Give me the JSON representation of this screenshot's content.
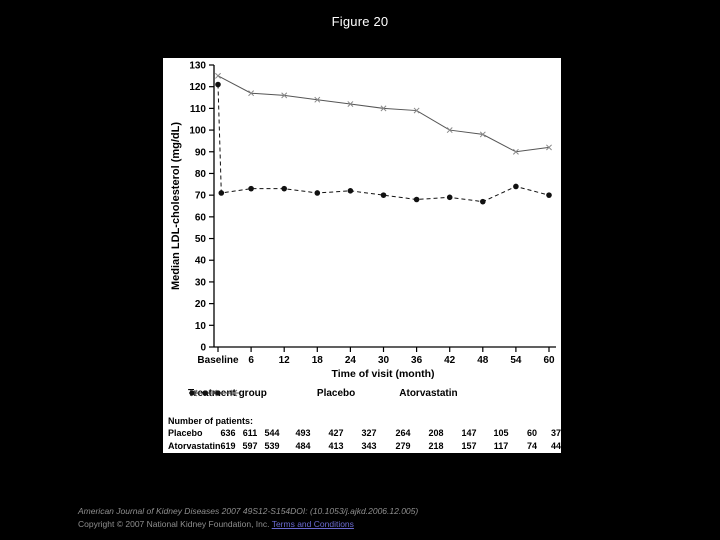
{
  "page": {
    "title": "Figure 20"
  },
  "chart_data": {
    "type": "line",
    "title": "",
    "xlabel": "Time of visit (month)",
    "ylabel": "Median LDL-cholesterol (mg/dL)",
    "ylim": [
      0,
      130
    ],
    "ytick_step": 10,
    "grid": false,
    "legend_position": "below",
    "legend_title": "Treatment group",
    "categories": [
      "Baseline",
      "6",
      "12",
      "18",
      "24",
      "30",
      "36",
      "42",
      "48",
      "54",
      "60"
    ],
    "series": [
      {
        "name": "Placebo",
        "marker": "x",
        "line": "solid",
        "x": [
          0,
          1,
          2,
          3,
          4,
          5,
          6,
          7,
          8,
          9,
          10
        ],
        "values": [
          125,
          117,
          116,
          114,
          112,
          110,
          109,
          100,
          98,
          90,
          92
        ]
      },
      {
        "name": "Atorvastatin",
        "marker": "dot",
        "line": "dashed",
        "x": [
          0,
          0.1,
          1,
          2,
          3,
          4,
          5,
          6,
          7,
          8,
          9,
          10
        ],
        "values": [
          121,
          71,
          73,
          73,
          71,
          72,
          70,
          68,
          69,
          67,
          74,
          70
        ]
      }
    ]
  },
  "patients": {
    "heading": "Number of patients:",
    "rows": [
      {
        "label": "Placebo",
        "counts": [
          "636",
          "611",
          "544",
          "493",
          "427",
          "327",
          "264",
          "208",
          "147",
          "105",
          "60",
          "37"
        ]
      },
      {
        "label": "Atorvastatin",
        "counts": [
          "619",
          "597",
          "539",
          "484",
          "413",
          "343",
          "279",
          "218",
          "157",
          "117",
          "74",
          "44"
        ]
      }
    ]
  },
  "footer": {
    "citation": "American Journal of Kidney Diseases 2007 49S12-S154DOI: (10.1053/j.ajkd.2006.12.005)",
    "copyright": "Copyright © 2007 National Kidney Foundation, Inc. ",
    "terms_link": "Terms and Conditions",
    "link_color": "#6a6ad0"
  }
}
